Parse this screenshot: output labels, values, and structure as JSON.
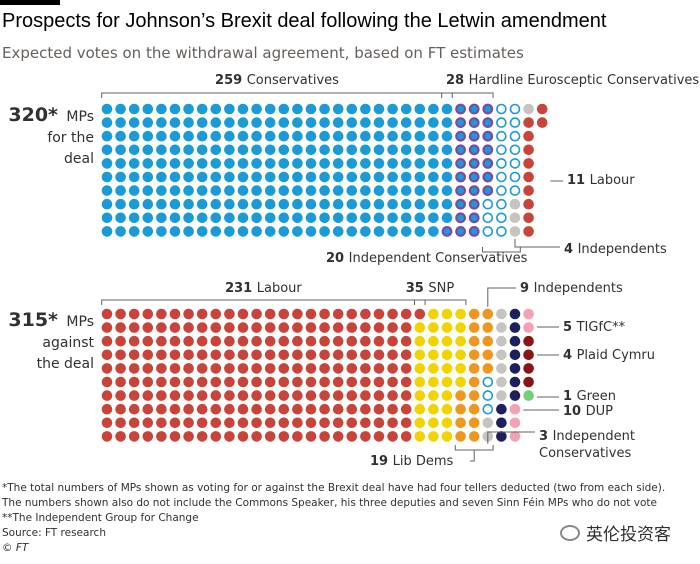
{
  "header": {
    "title": "Prospects for Johnson’s Brexit deal following the Letwin amendment",
    "subtitle": "Expected votes on the withdrawal agreement, based on FT estimates"
  },
  "chart_data": {
    "type": "waffle",
    "panels": [
      {
        "id": "for",
        "total": "320*",
        "label_lines": [
          "MPs",
          "for the",
          "deal"
        ],
        "groups": [
          {
            "count": 259,
            "name": "Conservatives",
            "color": "#1a9ad6",
            "style": "solid"
          },
          {
            "count": 28,
            "name": "Hardline Eurosceptic Conservatives",
            "color": "#7b4aa8",
            "style": "ringed"
          },
          {
            "count": 20,
            "name": "Independent Conservatives",
            "color": "#1a9ad6",
            "style": "outline"
          },
          {
            "count": 4,
            "name": "Independents",
            "color": "#c7c3c0",
            "style": "solid"
          },
          {
            "count": 11,
            "name": "Labour",
            "color": "#c8443b",
            "style": "solid"
          }
        ]
      },
      {
        "id": "against",
        "total": "315*",
        "label_lines": [
          "MPs",
          "against",
          "the deal"
        ],
        "groups": [
          {
            "count": 231,
            "name": "Labour",
            "color": "#c8443b",
            "style": "solid"
          },
          {
            "count": 35,
            "name": "SNP",
            "color": "#f2d300",
            "style": "solid"
          },
          {
            "count": 19,
            "name": "Lib Dems",
            "color": "#f0961e",
            "style": "solid"
          },
          {
            "count": 3,
            "name": "Independent Conservatives",
            "color": "#1a9ad6",
            "style": "outline"
          },
          {
            "count": 9,
            "name": "Independents",
            "color": "#c7c3c0",
            "style": "solid"
          },
          {
            "count": 10,
            "name": "DUP",
            "color": "#1d1f5e",
            "style": "solid"
          },
          {
            "count": 5,
            "name": "TIGfC**",
            "color": "#f4a0b5",
            "style": "solid"
          },
          {
            "count": 4,
            "name": "Plaid Cymru",
            "color": "#8b1414",
            "style": "solid"
          },
          {
            "count": 1,
            "name": "Green",
            "color": "#72d07a",
            "style": "solid"
          }
        ]
      }
    ]
  },
  "footnotes": [
    "*The total numbers of MPs shown as voting for or against the Brexit deal have had four tellers deducted (two from each side).",
    "The numbers shown also do not include the Commons Speaker, his three deputies and seven Sinn Féin MPs who do not vote",
    "**The Independent Group for Change",
    "Source: FT research",
    "© FT"
  ],
  "watermark": "英伦投资客"
}
